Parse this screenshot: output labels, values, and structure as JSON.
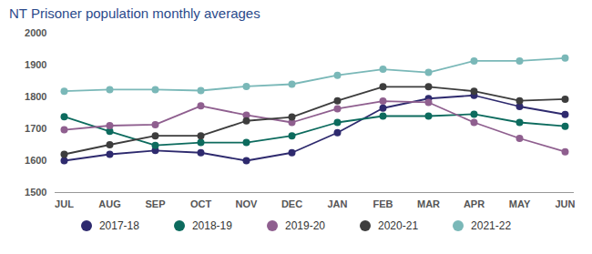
{
  "chart_data": {
    "type": "line",
    "title": "NT Prisoner population monthly averages",
    "categories": [
      "JUL",
      "AUG",
      "SEP",
      "OCT",
      "NOV",
      "DEC",
      "JAN",
      "FEB",
      "MAR",
      "APR",
      "MAY",
      "JUN"
    ],
    "series": [
      {
        "name": "2017-18",
        "color": "#2e2a6e",
        "values": [
          1600,
          1620,
          1632,
          1625,
          1600,
          1625,
          1688,
          1765,
          1795,
          1805,
          1770,
          1745
        ]
      },
      {
        "name": "2018-19",
        "color": "#0d6b5e",
        "values": [
          1738,
          1692,
          1648,
          1657,
          1657,
          1678,
          1720,
          1740,
          1740,
          1746,
          1720,
          1708
        ]
      },
      {
        "name": "2019-20",
        "color": "#8f5f8f",
        "values": [
          1697,
          1710,
          1713,
          1772,
          1743,
          1720,
          1763,
          1787,
          1783,
          1720,
          1670,
          1628
        ]
      },
      {
        "name": "2020-21",
        "color": "#3d3d3d",
        "values": [
          1620,
          1650,
          1678,
          1678,
          1725,
          1737,
          1788,
          1832,
          1832,
          1818,
          1788,
          1793
        ]
      },
      {
        "name": "2021-22",
        "color": "#7ab8b8",
        "values": [
          1818,
          1823,
          1823,
          1820,
          1833,
          1840,
          1868,
          1887,
          1877,
          1913,
          1913,
          1922
        ]
      }
    ],
    "ylim": [
      1500,
      2000
    ],
    "yticks": [
      1500,
      1600,
      1700,
      1800,
      1900,
      2000
    ],
    "grid": false,
    "legend": "bottom",
    "marker": "circle"
  }
}
